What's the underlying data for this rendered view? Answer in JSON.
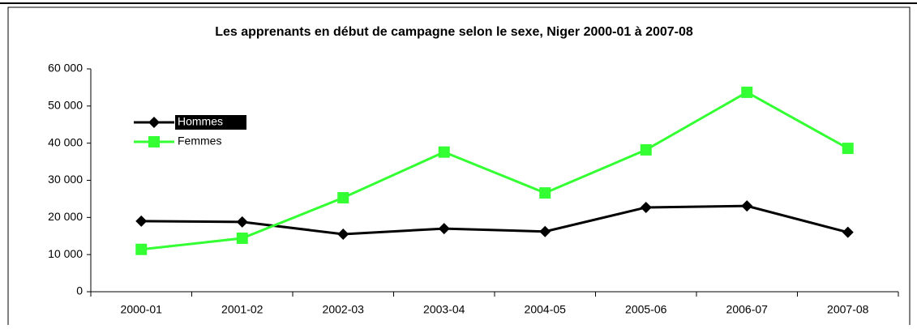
{
  "chart_data": {
    "type": "line",
    "title": "Les apprenants en début de campagne selon le sexe, Niger 2000-01 à 2007-08",
    "categories": [
      "2000-01",
      "2001-02",
      "2002-03",
      "2003-04",
      "2004-05",
      "2005-06",
      "2006-07",
      "2007-08"
    ],
    "series": [
      {
        "name": "Hommes",
        "color": "#000000",
        "marker": "diamond",
        "values": [
          19000,
          18800,
          15500,
          17000,
          16200,
          22700,
          23100,
          16000
        ]
      },
      {
        "name": "Femmes",
        "color": "#33ff33",
        "marker": "square",
        "values": [
          11400,
          14400,
          25300,
          37600,
          26600,
          38200,
          53700,
          38600
        ]
      }
    ],
    "ylim": [
      0,
      60000
    ],
    "yticks": [
      {
        "value": 0,
        "label": "0"
      },
      {
        "value": 10000,
        "label": "10 000"
      },
      {
        "value": 20000,
        "label": "20 000"
      },
      {
        "value": 30000,
        "label": "30 000"
      },
      {
        "value": 40000,
        "label": "40 000"
      },
      {
        "value": 50000,
        "label": "50 000"
      },
      {
        "value": 60000,
        "label": "60 000"
      }
    ],
    "grid": false,
    "legend": "upper left"
  }
}
